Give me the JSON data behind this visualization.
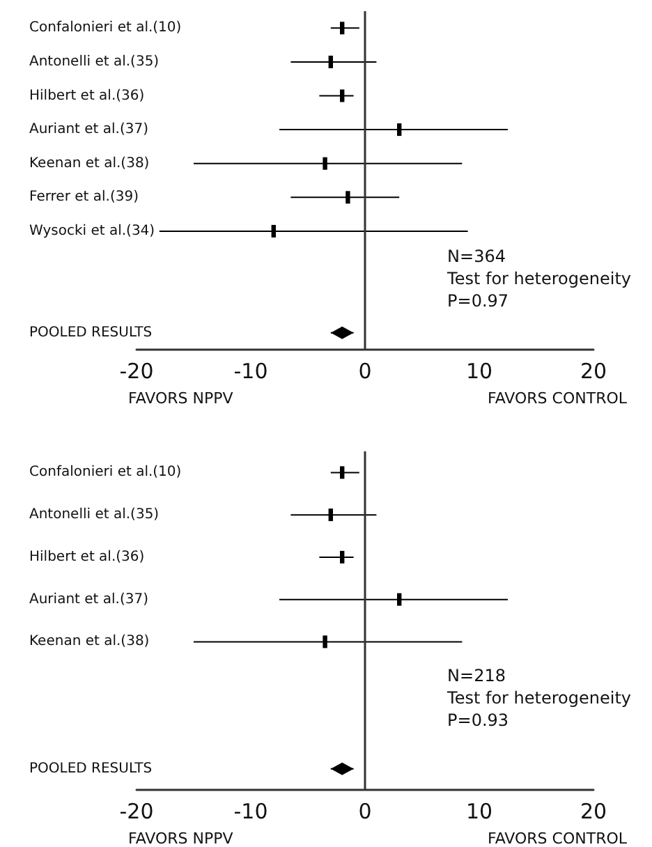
{
  "chart_data": [
    {
      "type": "scatter",
      "orientation": "horizontal",
      "categories": [
        "Confalonieri et al.(10)",
        "Antonelli et al.(35)",
        "Hilbert et al.(36)",
        "Auriant et al.(37)",
        "Keenan et al.(38)",
        "Ferrer et al.(39)",
        "Wysocki et al.(34)",
        null,
        null,
        "POOLED RESULTS"
      ],
      "series": [
        {
          "color": "#000000",
          "marker": "square",
          "values": [
            -2,
            -3,
            -2,
            3,
            -3.5,
            -1.5,
            -8,
            null,
            null,
            null
          ],
          "errors": [
            [
              -3,
              -0.5
            ],
            [
              -6.5,
              1
            ],
            [
              -4,
              -1
            ],
            [
              -7.5,
              12.5
            ],
            [
              -15,
              8.5
            ],
            [
              -6.5,
              3
            ],
            [
              -18,
              9
            ],
            null,
            null,
            null
          ]
        },
        {
          "color": "#000000",
          "marker": "diamond",
          "values": [
            null,
            null,
            null,
            null,
            null,
            null,
            null,
            null,
            null,
            -2
          ],
          "errors": [
            null,
            null,
            null,
            null,
            null,
            null,
            null,
            null,
            null,
            [
              -3,
              -1
            ]
          ]
        }
      ],
      "xlim": [
        -20,
        20
      ],
      "xticks": [
        -20,
        -10,
        0,
        10,
        20
      ],
      "grid": false,
      "ref_lines": [
        {
          "axis": "x",
          "value": 0
        }
      ],
      "annotations": [
        "N=364\nTest for heterogeneity\nP=0.97",
        "FAVORS NPPV",
        "FAVORS CONTROL"
      ]
    },
    {
      "type": "scatter",
      "orientation": "horizontal",
      "categories": [
        "Confalonieri et al.(10)",
        "Antonelli et al.(35)",
        "Hilbert et al.(36)",
        "Auriant et al.(37)",
        "Keenan et al.(38)",
        null,
        null,
        "POOLED RESULTS"
      ],
      "series": [
        {
          "color": "#000000",
          "marker": "square",
          "values": [
            -2,
            -3,
            -2,
            3,
            -3.5,
            null,
            null,
            null
          ],
          "errors": [
            [
              -3,
              -0.5
            ],
            [
              -6.5,
              1
            ],
            [
              -4,
              -1
            ],
            [
              -7.5,
              12.5
            ],
            [
              -15,
              8.5
            ],
            null,
            null,
            null
          ]
        },
        {
          "color": "#000000",
          "marker": "diamond",
          "values": [
            null,
            null,
            null,
            null,
            null,
            null,
            null,
            -2
          ],
          "errors": [
            null,
            null,
            null,
            null,
            null,
            null,
            null,
            [
              -3,
              -1
            ]
          ]
        }
      ],
      "xlim": [
        -20,
        20
      ],
      "xticks": [
        -20,
        -10,
        0,
        10,
        20
      ],
      "grid": false,
      "ref_lines": [
        {
          "axis": "x",
          "value": 0
        }
      ],
      "annotations": [
        "N=218\nTest for heterogeneity\nP=0.93",
        "FAVORS NPPV",
        "FAVORS CONTROL"
      ]
    }
  ]
}
